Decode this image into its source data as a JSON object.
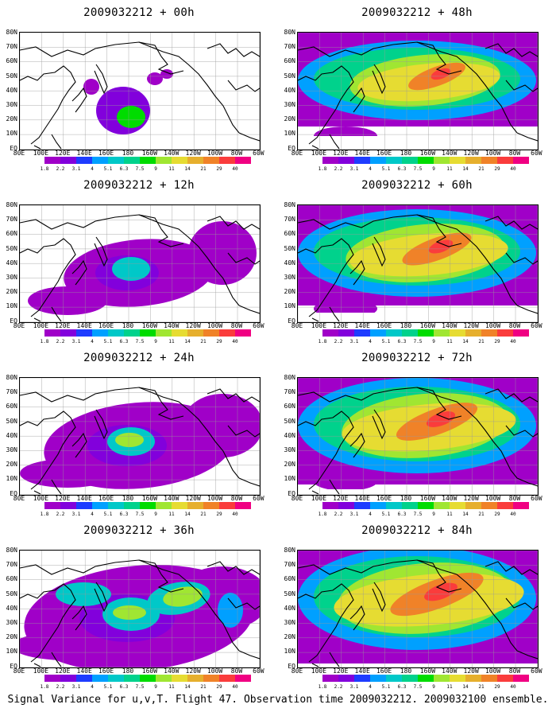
{
  "caption": "Signal Variance for u,v,T. Flight 47. Observation time 2009032212. 2009032100 ensemble.",
  "lat_labels": [
    "80N",
    "70N",
    "60N",
    "50N",
    "40N",
    "30N",
    "20N",
    "10N",
    "EQ"
  ],
  "lon_labels": [
    "80E",
    "100E",
    "120E",
    "140E",
    "160E",
    "180",
    "160W",
    "140W",
    "120W",
    "100W",
    "80W",
    "60W"
  ],
  "colorbar": {
    "labels": [
      "1.8",
      "2.2",
      "3.1",
      "4",
      "5.1",
      "6.3",
      "7.5",
      "9",
      "11",
      "14",
      "21",
      "29",
      "40"
    ],
    "colors": [
      "#a000c8",
      "#8200dc",
      "#1e3cff",
      "#00a0ff",
      "#00c8c8",
      "#00d28c",
      "#00dc00",
      "#a0e632",
      "#e6dc32",
      "#e6af2d",
      "#f08228",
      "#fa3c3c",
      "#f00082"
    ]
  },
  "panels": [
    {
      "title": "2009032212 + 00h",
      "level": 0
    },
    {
      "title": "2009032212 + 48h",
      "level": 5
    },
    {
      "title": "2009032212 + 12h",
      "level": 1
    },
    {
      "title": "2009032212 + 60h",
      "level": 6
    },
    {
      "title": "2009032212 + 24h",
      "level": 2
    },
    {
      "title": "2009032212 + 72h",
      "level": 7
    },
    {
      "title": "2009032212 + 36h",
      "level": 3
    },
    {
      "title": "2009032212 + 84h",
      "level": 8
    }
  ]
}
